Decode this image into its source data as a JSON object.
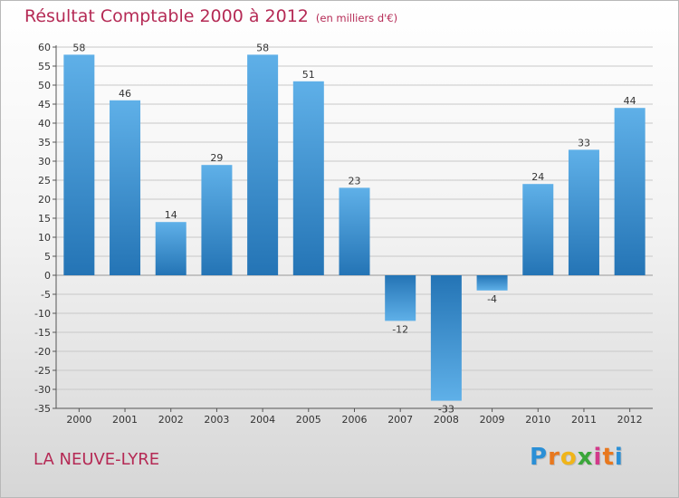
{
  "title": "Résultat Comptable 2000 à 2012",
  "subtitle": "(en milliers d'€)",
  "location": "LA NEUVE-LYRE",
  "logo": {
    "letters": [
      "P",
      "r",
      "o",
      "x",
      "i",
      "t",
      "i"
    ],
    "colors": [
      "#2a8fd6",
      "#e8781e",
      "#f0b51a",
      "#3aa63a",
      "#d23a8a",
      "#e8781e",
      "#2a8fd6"
    ]
  },
  "colors": {
    "title": "#b52a55",
    "bar_light": "#5fb0e8",
    "bar_dark": "#2474b5",
    "grid": "#c8c8c8"
  },
  "chart_data": {
    "type": "bar",
    "title": "Résultat Comptable 2000 à 2012",
    "ylabel": "en milliers d'€",
    "categories": [
      "2000",
      "2001",
      "2002",
      "2003",
      "2004",
      "2005",
      "2006",
      "2007",
      "2008",
      "2009",
      "2010",
      "2011",
      "2012"
    ],
    "values": [
      58,
      46,
      14,
      29,
      58,
      51,
      23,
      -12,
      -33,
      -4,
      24,
      33,
      44
    ],
    "labels": [
      "58",
      "46",
      "14",
      "29",
      "58",
      "51",
      "23",
      "-12",
      "-33",
      "-4",
      "24",
      "33",
      "44"
    ],
    "yticks": [
      60,
      55,
      50,
      45,
      40,
      35,
      30,
      25,
      20,
      15,
      10,
      5,
      0,
      -5,
      -10,
      -15,
      -20,
      -25,
      -30,
      -35
    ],
    "ylim": [
      -35,
      60
    ],
    "grid": true
  }
}
